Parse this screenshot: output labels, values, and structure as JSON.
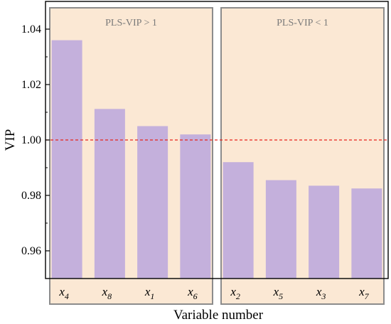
{
  "chart_data": {
    "type": "bar",
    "xlabel": "Variable number",
    "ylabel": "VIP",
    "ylim": [
      0.95,
      1.05
    ],
    "yticks": [
      "0.96",
      "0.98",
      "1.00",
      "1.02",
      "1.04"
    ],
    "categories": [
      {
        "base": "x",
        "sub": "4"
      },
      {
        "base": "x",
        "sub": "8"
      },
      {
        "base": "x",
        "sub": "1"
      },
      {
        "base": "x",
        "sub": "6"
      },
      {
        "base": "x",
        "sub": "2"
      },
      {
        "base": "x",
        "sub": "5"
      },
      {
        "base": "x",
        "sub": "3"
      },
      {
        "base": "x",
        "sub": "7"
      }
    ],
    "values": [
      1.036,
      1.0112,
      1.005,
      1.002,
      0.992,
      0.9855,
      0.9835,
      0.9825
    ],
    "threshold": 1.0,
    "groups": [
      {
        "label": "PLS-VIP > 1",
        "start": 0,
        "end": 3
      },
      {
        "label": "PLS-VIP < 1",
        "start": 4,
        "end": 7
      }
    ],
    "colors": {
      "bar": "#c4b0dc",
      "group_fill": "#fbe8d4",
      "group_border": "#8c8c8c",
      "threshold_line": "#e8231a",
      "group_text": "#7a7a7a"
    }
  }
}
